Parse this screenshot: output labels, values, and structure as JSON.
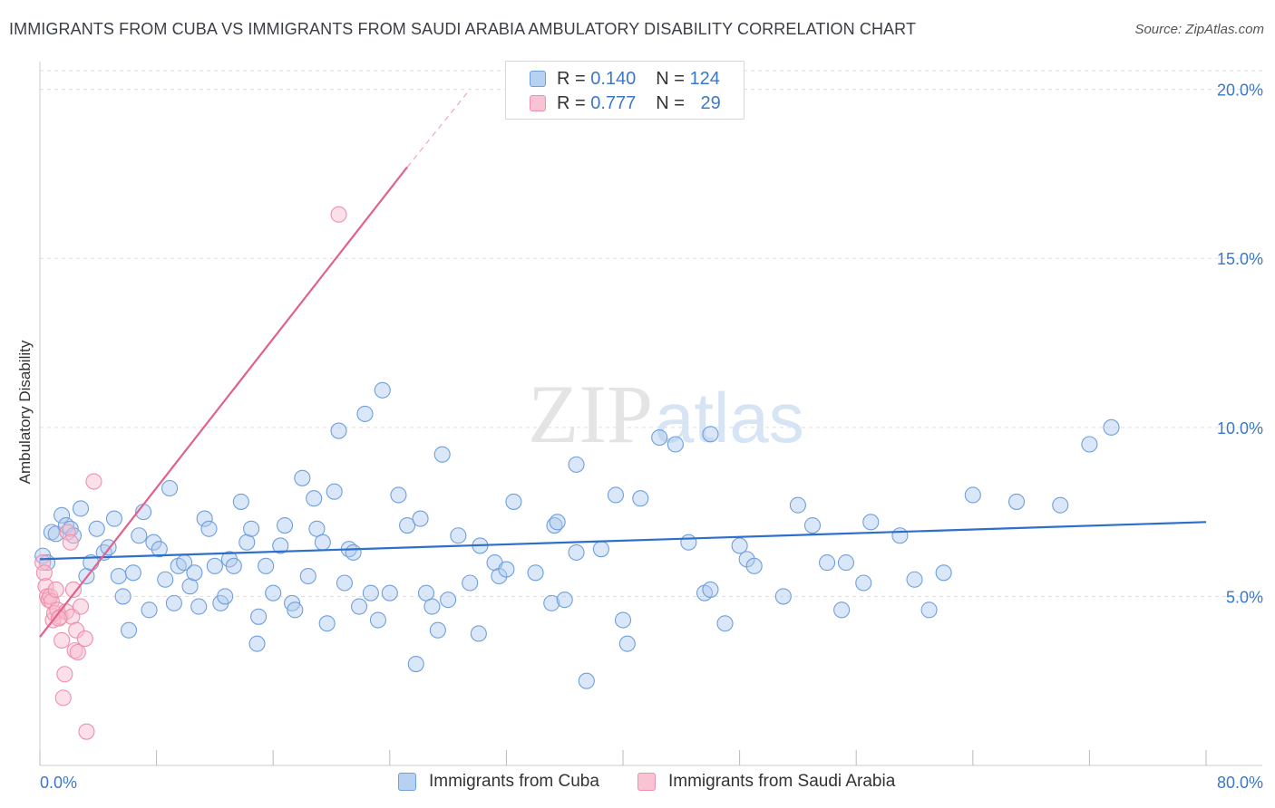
{
  "title": "IMMIGRANTS FROM CUBA VS IMMIGRANTS FROM SAUDI ARABIA AMBULATORY DISABILITY CORRELATION CHART",
  "source": "Source: ZipAtlas.com",
  "watermark": {
    "zip": "ZIP",
    "atlas": "atlas"
  },
  "legend": {
    "r_label": "R =",
    "n_label": "N =",
    "rows": [
      {
        "r": "0.140",
        "n": "124",
        "swatch_fill": "#b7d1f2",
        "swatch_stroke": "#6f9fdc"
      },
      {
        "r": "0.777",
        "n": "29",
        "swatch_fill": "#f9c3d3",
        "swatch_stroke": "#ee8fab"
      }
    ]
  },
  "bottom_legend": [
    {
      "label": "Immigrants from Cuba"
    },
    {
      "label": "Immigrants from Saudi Arabia"
    }
  ],
  "colors": {
    "blue_fill": "rgba(173,202,240,0.45)",
    "blue_stroke": "#6f9fdc",
    "blue_line": "#2e6fcb",
    "pink_fill": "rgba(248,187,206,0.45)",
    "pink_stroke": "#ee8fab",
    "pink_line": "#e0628b",
    "tick_text": "#3b78c9",
    "grid": "#dddddd"
  },
  "chart_data": {
    "type": "scatter",
    "title": "IMMIGRANTS FROM CUBA VS IMMIGRANTS FROM SAUDI ARABIA AMBULATORY DISABILITY CORRELATION CHART",
    "ylabel": "Ambulatory Disability",
    "xlabel": "",
    "xlim": [
      0,
      80
    ],
    "ylim": [
      0,
      20.5
    ],
    "x_tick_labels": [
      "0.0%",
      "80.0%"
    ],
    "y_ticks": [
      5,
      10,
      15,
      20
    ],
    "y_tick_labels": [
      "5.0%",
      "10.0%",
      "15.0%",
      "20.0%"
    ],
    "grid": true,
    "legend_position": "top-center",
    "series": [
      {
        "name": "Immigrants from Cuba",
        "R": 0.14,
        "N": 124,
        "trend": {
          "x": [
            0,
            80
          ],
          "y": [
            6.1,
            7.2
          ]
        },
        "points": [
          [
            0.2,
            6.2
          ],
          [
            0.5,
            6.0
          ],
          [
            0.8,
            6.9
          ],
          [
            1.1,
            6.85
          ],
          [
            1.5,
            7.4
          ],
          [
            1.8,
            7.1
          ],
          [
            2.1,
            7.0
          ],
          [
            2.3,
            6.8
          ],
          [
            2.8,
            7.6
          ],
          [
            3.2,
            5.6
          ],
          [
            3.5,
            6.0
          ],
          [
            3.9,
            7.0
          ],
          [
            4.4,
            6.3
          ],
          [
            4.7,
            6.45
          ],
          [
            5.1,
            7.3
          ],
          [
            5.4,
            5.6
          ],
          [
            5.7,
            5.0
          ],
          [
            6.1,
            4.0
          ],
          [
            6.4,
            5.7
          ],
          [
            6.8,
            6.8
          ],
          [
            7.1,
            7.5
          ],
          [
            7.5,
            4.6
          ],
          [
            7.8,
            6.6
          ],
          [
            8.2,
            6.4
          ],
          [
            8.6,
            5.5
          ],
          [
            8.9,
            8.2
          ],
          [
            9.2,
            4.8
          ],
          [
            9.5,
            5.9
          ],
          [
            9.9,
            6.0
          ],
          [
            10.3,
            5.3
          ],
          [
            10.6,
            5.7
          ],
          [
            10.9,
            4.7
          ],
          [
            11.3,
            7.3
          ],
          [
            11.6,
            7.0
          ],
          [
            12.0,
            5.9
          ],
          [
            12.4,
            4.8
          ],
          [
            12.7,
            5.0
          ],
          [
            13.0,
            6.1
          ],
          [
            13.3,
            5.9
          ],
          [
            13.8,
            7.8
          ],
          [
            14.2,
            6.6
          ],
          [
            14.5,
            7.0
          ],
          [
            14.9,
            3.6
          ],
          [
            15.0,
            4.4
          ],
          [
            15.5,
            5.9
          ],
          [
            16.0,
            5.1
          ],
          [
            16.5,
            6.5
          ],
          [
            16.8,
            7.1
          ],
          [
            17.3,
            4.8
          ],
          [
            17.5,
            4.6
          ],
          [
            18.0,
            8.5
          ],
          [
            18.4,
            5.6
          ],
          [
            18.8,
            7.9
          ],
          [
            19.0,
            7.0
          ],
          [
            19.4,
            6.6
          ],
          [
            19.7,
            4.2
          ],
          [
            20.2,
            8.1
          ],
          [
            20.5,
            9.9
          ],
          [
            20.9,
            5.4
          ],
          [
            21.2,
            6.4
          ],
          [
            21.5,
            6.3
          ],
          [
            21.9,
            4.7
          ],
          [
            22.3,
            10.4
          ],
          [
            22.7,
            5.1
          ],
          [
            23.2,
            4.3
          ],
          [
            23.5,
            11.1
          ],
          [
            24.0,
            5.1
          ],
          [
            24.6,
            8.0
          ],
          [
            25.2,
            7.1
          ],
          [
            25.8,
            3.0
          ],
          [
            26.1,
            7.3
          ],
          [
            26.5,
            5.1
          ],
          [
            26.9,
            4.7
          ],
          [
            27.3,
            4.0
          ],
          [
            27.6,
            9.2
          ],
          [
            28.0,
            4.9
          ],
          [
            28.7,
            6.8
          ],
          [
            29.5,
            5.4
          ],
          [
            30.1,
            3.9
          ],
          [
            31.2,
            6.0
          ],
          [
            31.5,
            5.6
          ],
          [
            32.0,
            5.8
          ],
          [
            32.5,
            7.8
          ],
          [
            34.0,
            5.7
          ],
          [
            35.1,
            4.8
          ],
          [
            35.3,
            7.1
          ],
          [
            35.5,
            7.2
          ],
          [
            36.0,
            4.9
          ],
          [
            36.8,
            8.9
          ],
          [
            37.5,
            2.5
          ],
          [
            38.5,
            6.4
          ],
          [
            39.5,
            8.0
          ],
          [
            40.0,
            4.3
          ],
          [
            40.3,
            3.6
          ],
          [
            41.2,
            7.9
          ],
          [
            42.5,
            9.7
          ],
          [
            43.6,
            9.5
          ],
          [
            44.5,
            6.6
          ],
          [
            45.6,
            5.1
          ],
          [
            46.0,
            5.2
          ],
          [
            46.0,
            9.8
          ],
          [
            47.0,
            4.2
          ],
          [
            48.0,
            6.5
          ],
          [
            48.5,
            6.1
          ],
          [
            49.0,
            5.9
          ],
          [
            51.0,
            5.0
          ],
          [
            52.0,
            7.7
          ],
          [
            53.0,
            7.1
          ],
          [
            54.0,
            6.0
          ],
          [
            55.0,
            4.6
          ],
          [
            55.3,
            6.0
          ],
          [
            56.5,
            5.4
          ],
          [
            57.0,
            7.2
          ],
          [
            59.0,
            6.8
          ],
          [
            60.0,
            5.5
          ],
          [
            61.0,
            4.6
          ],
          [
            62.0,
            5.7
          ],
          [
            64.0,
            8.0
          ],
          [
            67.0,
            7.8
          ],
          [
            70.0,
            7.7
          ],
          [
            72.0,
            9.5
          ],
          [
            73.5,
            10.0
          ],
          [
            36.8,
            6.3
          ],
          [
            30.2,
            6.5
          ]
        ]
      },
      {
        "name": "Immigrants from Saudi Arabia",
        "R": 0.777,
        "N": 29,
        "trend": {
          "x": [
            0,
            25.2
          ],
          "y": [
            3.8,
            17.7
          ]
        },
        "trend_dashed": {
          "x": [
            25.2,
            29.5
          ],
          "y": [
            17.7,
            20.0
          ]
        },
        "points": [
          [
            0.2,
            6.0
          ],
          [
            0.3,
            5.7
          ],
          [
            0.4,
            5.3
          ],
          [
            0.5,
            5.0
          ],
          [
            0.6,
            4.9
          ],
          [
            0.7,
            5.0
          ],
          [
            0.8,
            4.85
          ],
          [
            0.9,
            4.3
          ],
          [
            1.0,
            4.5
          ],
          [
            1.1,
            5.2
          ],
          [
            1.2,
            4.6
          ],
          [
            1.4,
            4.4
          ],
          [
            1.5,
            3.7
          ],
          [
            1.6,
            2.0
          ],
          [
            1.7,
            2.7
          ],
          [
            1.8,
            4.55
          ],
          [
            1.9,
            6.9
          ],
          [
            2.1,
            6.6
          ],
          [
            2.2,
            4.4
          ],
          [
            2.3,
            5.2
          ],
          [
            2.4,
            3.4
          ],
          [
            2.5,
            4.0
          ],
          [
            2.6,
            3.35
          ],
          [
            2.8,
            4.7
          ],
          [
            3.1,
            3.75
          ],
          [
            3.2,
            1.0
          ],
          [
            3.7,
            8.4
          ],
          [
            20.5,
            16.3
          ],
          [
            1.3,
            4.35
          ]
        ]
      }
    ]
  }
}
